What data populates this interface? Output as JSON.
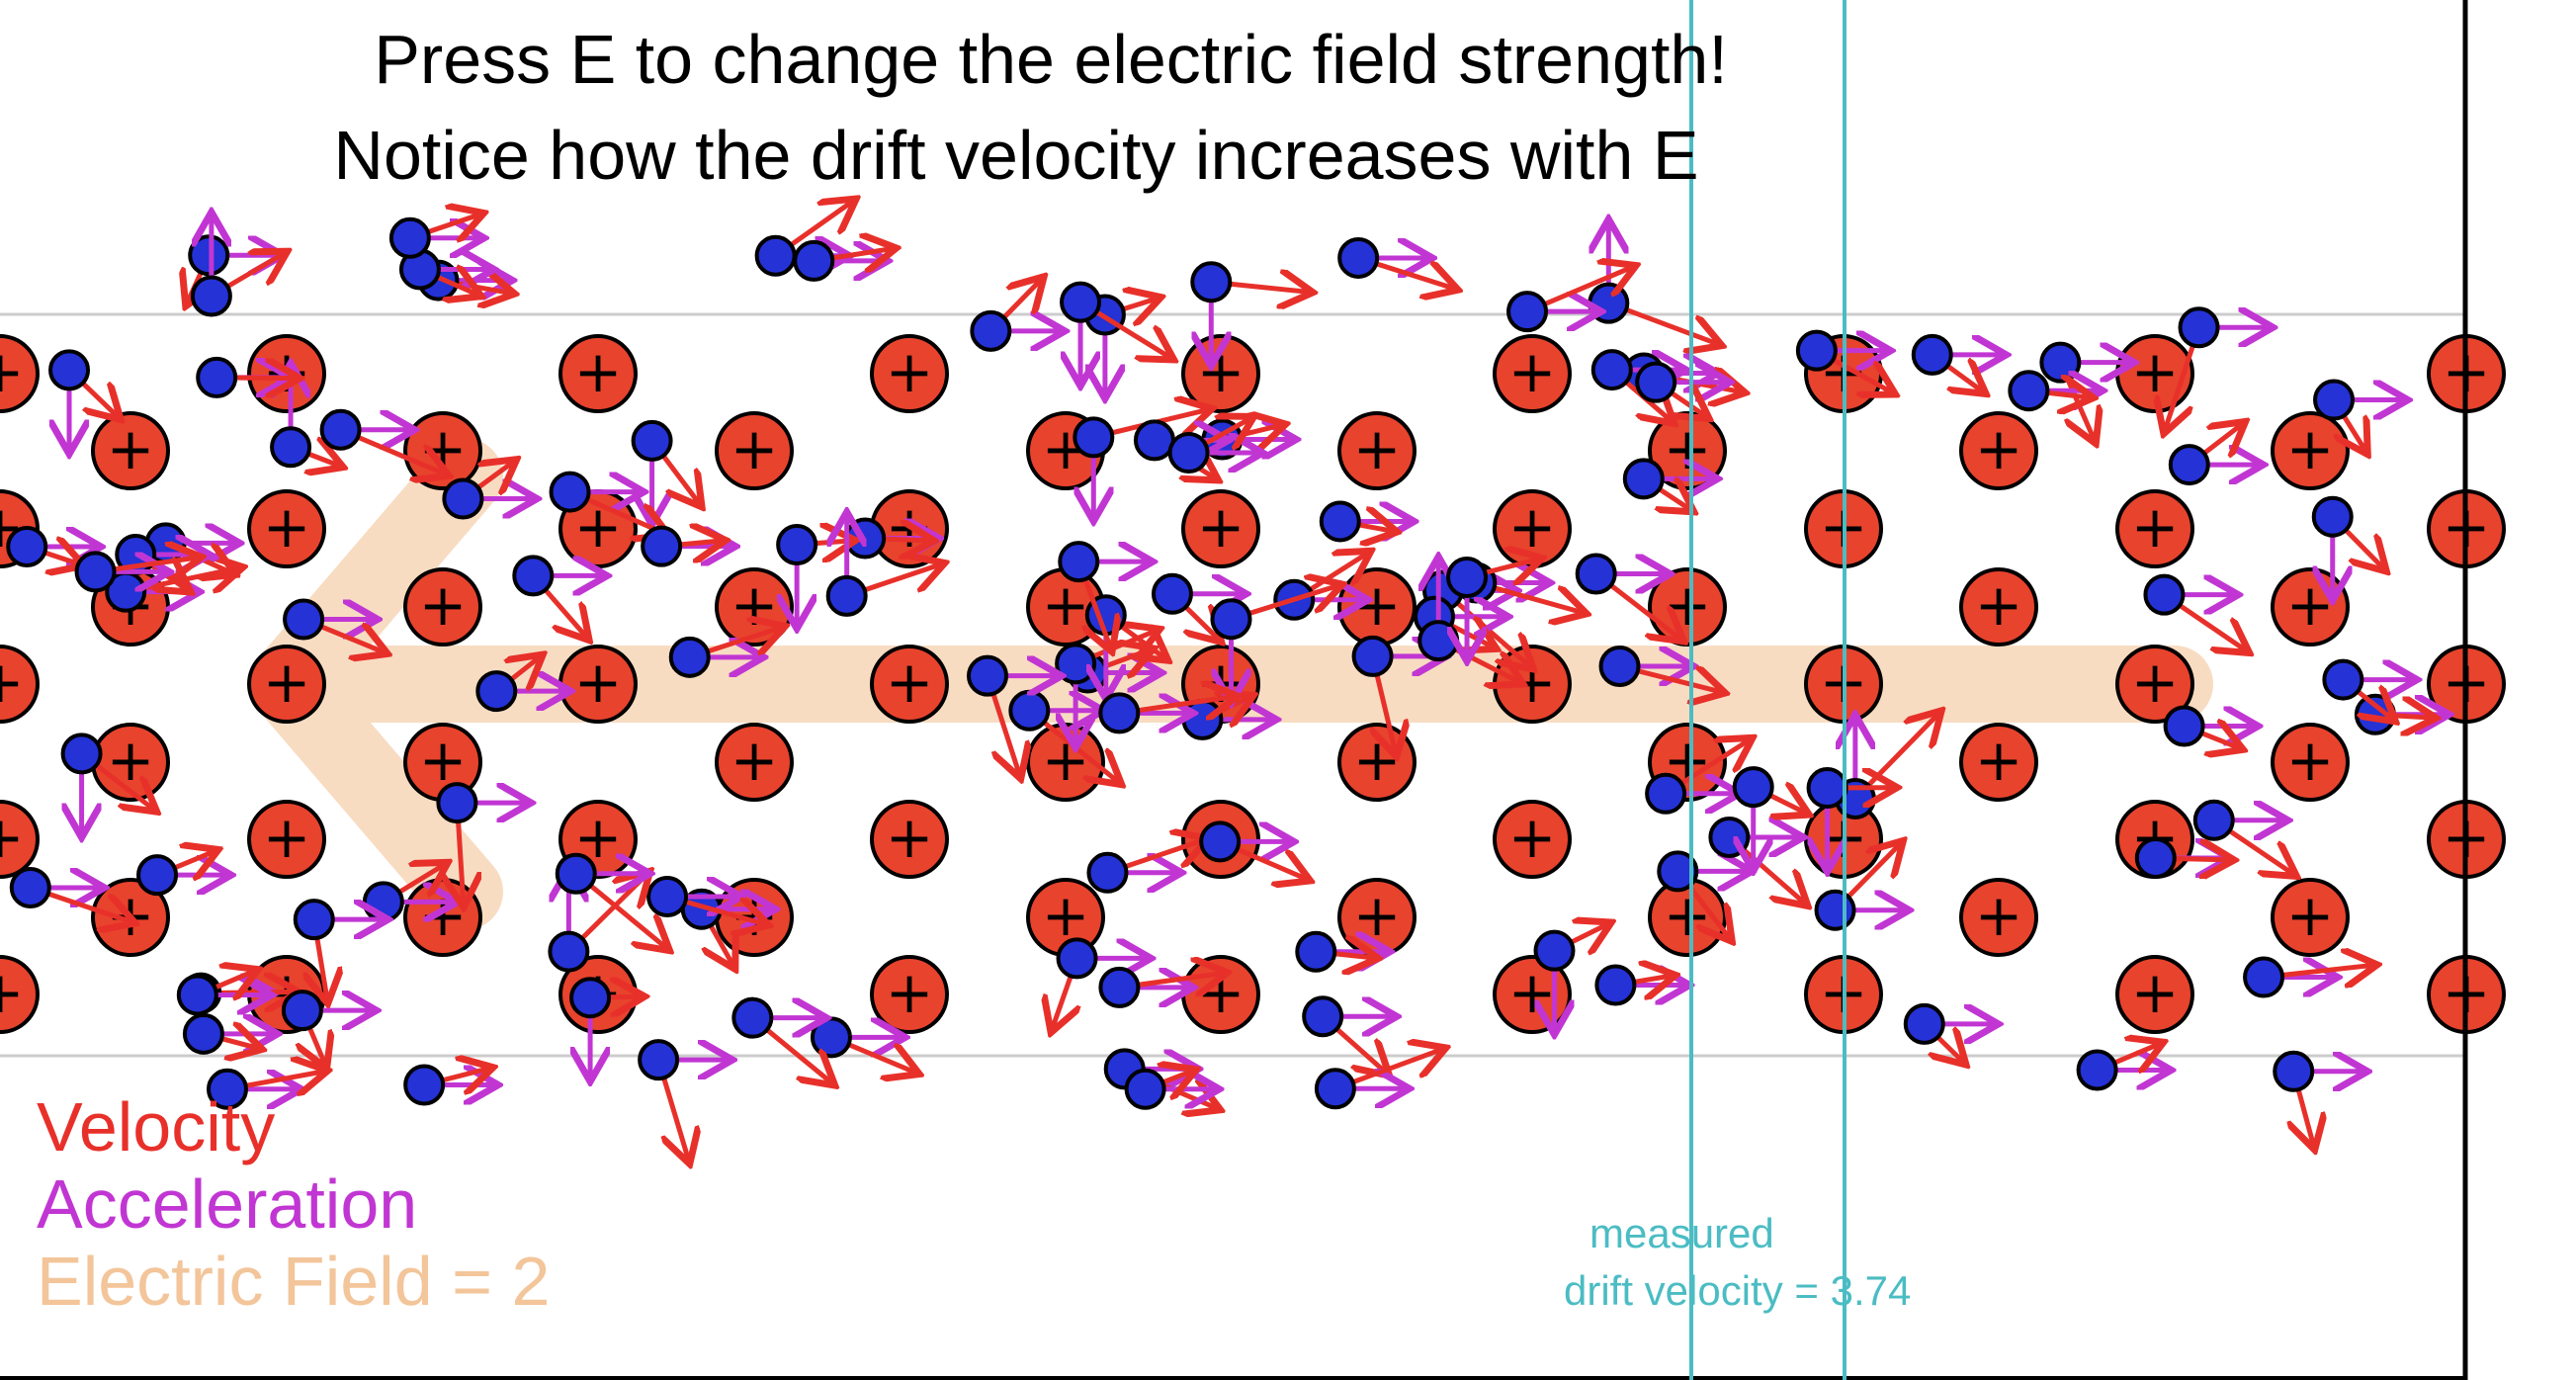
{
  "instructions": {
    "line1": "Press E to change the electric field strength!",
    "line2": "Notice how the drift velocity increases with E"
  },
  "legend": {
    "velocity_label": "Velocity",
    "acceleration_label": "Acceleration",
    "field_label": "Electric Field = ",
    "field_value": "2"
  },
  "measurement": {
    "label": "measured",
    "drift_label": "drift velocity = ",
    "drift_value": "3.74"
  },
  "ion_symbol": "+",
  "colors": {
    "velocity": "#e8302a",
    "acceleration": "#c136d3",
    "field": "#f3c59a",
    "ion": "#e8432d",
    "electron": "#2432d6",
    "probe": "#4bbcc3",
    "lattice_line": "#cccccc"
  }
}
